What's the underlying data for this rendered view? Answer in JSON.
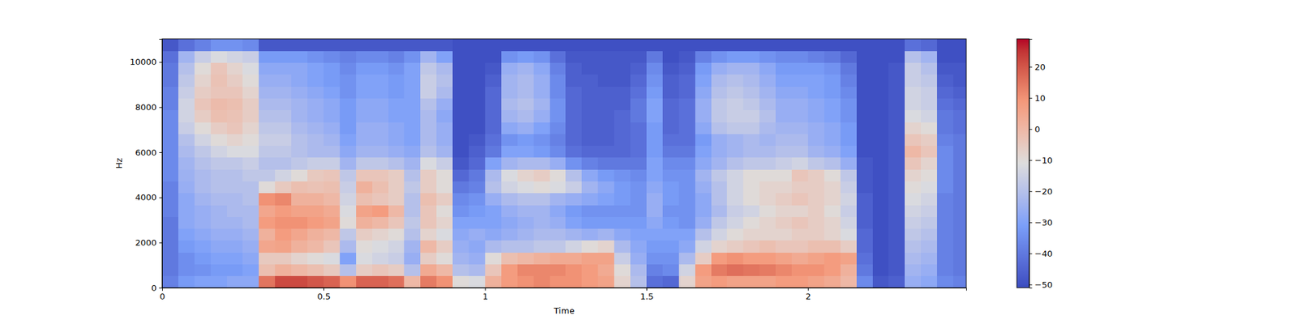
{
  "chart_data": {
    "type": "heatmap",
    "x_label": "Time",
    "y_label": "Hz",
    "xlim": [
      0,
      2.49
    ],
    "ylim": [
      0,
      11025
    ],
    "xticks": [
      0,
      0.5,
      1,
      1.5,
      2
    ],
    "yticks": [
      0,
      2000,
      4000,
      6000,
      8000,
      10000
    ],
    "colorbar_lim": [
      -51,
      29
    ],
    "colorbar_ticks": [
      {
        "value": -50,
        "label": "−50"
      },
      {
        "value": -40,
        "label": "−40"
      },
      {
        "value": -30,
        "label": "−30"
      },
      {
        "value": -20,
        "label": "−20"
      },
      {
        "value": -10,
        "label": "−10"
      },
      0,
      10,
      20
    ],
    "x_edges": [
      0,
      0.05,
      0.1,
      0.15,
      0.2,
      0.25,
      0.3,
      0.35,
      0.4,
      0.45,
      0.5,
      0.55,
      0.6,
      0.65,
      0.7,
      0.75,
      0.8,
      0.85,
      0.9,
      0.95,
      1.0,
      1.05,
      1.1,
      1.15,
      1.2,
      1.25,
      1.3,
      1.35,
      1.4,
      1.45,
      1.5,
      1.55,
      1.6,
      1.65,
      1.7,
      1.75,
      1.8,
      1.85,
      1.9,
      1.95,
      2.0,
      2.05,
      2.1,
      2.15,
      2.2,
      2.25,
      2.3,
      2.35,
      2.4,
      2.45,
      2.49
    ],
    "y_edges": [
      0,
      525,
      1050,
      1575,
      2100,
      2625,
      3150,
      3675,
      4200,
      4725,
      5250,
      5775,
      6300,
      6825,
      7350,
      7875,
      8400,
      8925,
      9450,
      9975,
      10500,
      11025
    ],
    "values": [
      [
        -38,
        -40,
        -40,
        -40,
        -40,
        -40,
        -38,
        -38,
        -38,
        -36,
        -36,
        -36,
        -36,
        -36,
        -36,
        -38,
        -38,
        -40,
        -40,
        -42,
        -48
      ],
      [
        -32,
        -35,
        -35,
        -32,
        -30,
        -28,
        -28,
        -28,
        -26,
        -25,
        -24,
        -22,
        -20,
        -16,
        -14,
        -14,
        -16,
        -18,
        -20,
        -24,
        -42
      ],
      [
        -30,
        -34,
        -32,
        -30,
        -28,
        -26,
        -26,
        -24,
        -22,
        -22,
        -20,
        -18,
        -14,
        -10,
        -6,
        -4,
        -6,
        -8,
        -10,
        -16,
        -38
      ],
      [
        -30,
        -32,
        -30,
        -28,
        -26,
        -24,
        -24,
        -22,
        -20,
        -20,
        -18,
        -14,
        -10,
        -6,
        -2,
        -1,
        -4,
        -3,
        -4,
        -12,
        -34
      ],
      [
        -28,
        -32,
        -30,
        -28,
        -26,
        -24,
        -22,
        -22,
        -20,
        -20,
        -18,
        -12,
        -8,
        -4,
        -3,
        -2,
        -4,
        -6,
        -8,
        -14,
        -34
      ],
      [
        -28,
        -30,
        -28,
        -26,
        -24,
        -22,
        -22,
        -20,
        -20,
        -18,
        -16,
        -12,
        -10,
        -8,
        -6,
        -6,
        -8,
        -10,
        -12,
        -16,
        -36
      ],
      [
        15,
        -2,
        -5,
        5,
        2,
        8,
        5,
        10,
        -10,
        -18,
        -20,
        -18,
        -16,
        -18,
        -20,
        -22,
        -24,
        -26,
        -28,
        -32,
        -48
      ],
      [
        22,
        2,
        -5,
        6,
        8,
        10,
        8,
        12,
        -5,
        -14,
        -20,
        -18,
        -16,
        -18,
        -20,
        -22,
        -24,
        -26,
        -28,
        -32,
        -48
      ],
      [
        22,
        0,
        -8,
        2,
        5,
        10,
        6,
        2,
        -2,
        -10,
        -18,
        -20,
        -20,
        -22,
        -24,
        -24,
        -26,
        -28,
        -28,
        -32,
        -48
      ],
      [
        20,
        -2,
        -10,
        0,
        2,
        8,
        6,
        2,
        -3,
        -5,
        -16,
        -22,
        -22,
        -24,
        -26,
        -26,
        -28,
        -30,
        -30,
        -34,
        -48
      ],
      [
        18,
        -5,
        -12,
        -4,
        0,
        6,
        4,
        0,
        -2,
        -4,
        -16,
        -22,
        -24,
        -26,
        -28,
        -28,
        -30,
        -32,
        -32,
        -36,
        -48
      ],
      [
        10,
        -20,
        -30,
        -22,
        -18,
        -10,
        -12,
        -14,
        -16,
        -18,
        -24,
        -28,
        -30,
        -32,
        -32,
        -32,
        -34,
        -34,
        -36,
        -38,
        -48
      ],
      [
        18,
        -6,
        -12,
        -10,
        -6,
        2,
        6,
        -2,
        2,
        -4,
        -18,
        -24,
        -26,
        -26,
        -28,
        -28,
        -30,
        -30,
        -32,
        -36,
        -48
      ],
      [
        18,
        -4,
        -14,
        -12,
        -8,
        0,
        8,
        -4,
        -2,
        -4,
        -18,
        -24,
        -26,
        -26,
        -28,
        -28,
        -30,
        -30,
        -32,
        -36,
        -48
      ],
      [
        16,
        -6,
        -16,
        -14,
        -10,
        -4,
        0,
        -6,
        -6,
        -6,
        -20,
        -26,
        -28,
        -28,
        -30,
        -30,
        -32,
        -32,
        -34,
        -38,
        -48
      ],
      [
        0,
        -20,
        -26,
        -24,
        -20,
        -18,
        -20,
        -20,
        -18,
        -20,
        -24,
        -28,
        -30,
        -30,
        -30,
        -30,
        -30,
        -30,
        -30,
        -34,
        -48
      ],
      [
        14,
        4,
        -6,
        0,
        -8,
        -4,
        -4,
        -2,
        -6,
        -6,
        -12,
        -20,
        -22,
        -22,
        -22,
        -20,
        -16,
        -16,
        -18,
        -24,
        -48
      ],
      [
        10,
        0,
        -10,
        -6,
        -12,
        -8,
        -10,
        -6,
        -10,
        -10,
        -16,
        -24,
        -26,
        -26,
        -28,
        -26,
        -22,
        -20,
        -22,
        -30,
        -48
      ],
      [
        -10,
        -20,
        -24,
        -26,
        -28,
        -30,
        -34,
        -36,
        -40,
        -44,
        -48,
        -50,
        -50,
        -50,
        -50,
        -50,
        -50,
        -50,
        -50,
        -50,
        -50
      ],
      [
        -12,
        -22,
        -26,
        -28,
        -26,
        -30,
        -32,
        -34,
        -38,
        -40,
        -44,
        -46,
        -48,
        -50,
        -50,
        -50,
        -50,
        -50,
        -50,
        -50,
        -50
      ],
      [
        2,
        -4,
        -10,
        -22,
        -28,
        -30,
        -30,
        -26,
        -20,
        -22,
        -30,
        -40,
        -42,
        -44,
        -44,
        -44,
        -44,
        -46,
        -48,
        -50,
        -50
      ],
      [
        8,
        8,
        -2,
        -20,
        -26,
        -28,
        -26,
        -22,
        -14,
        -12,
        -24,
        -30,
        -34,
        -28,
        -24,
        -22,
        -24,
        -24,
        -26,
        -34,
        -50
      ],
      [
        10,
        12,
        0,
        -20,
        -24,
        -26,
        -24,
        -20,
        -12,
        -8,
        -22,
        -30,
        -32,
        -26,
        -22,
        -20,
        -22,
        -22,
        -24,
        -32,
        -50
      ],
      [
        12,
        12,
        2,
        -18,
        -22,
        -24,
        -24,
        -20,
        -10,
        -6,
        -22,
        -32,
        -34,
        -30,
        -26,
        -24,
        -26,
        -26,
        -28,
        -34,
        -50
      ],
      [
        10,
        12,
        4,
        -18,
        -22,
        -26,
        -28,
        -24,
        -12,
        -10,
        -26,
        -36,
        -38,
        -36,
        -34,
        -34,
        -36,
        -36,
        -38,
        -42,
        -50
      ],
      [
        10,
        10,
        4,
        -14,
        -24,
        -30,
        -32,
        -26,
        -16,
        -20,
        -34,
        -42,
        -44,
        -44,
        -44,
        -44,
        -44,
        -46,
        -46,
        -48,
        -50
      ],
      [
        8,
        8,
        6,
        -10,
        -26,
        -32,
        -34,
        -28,
        -24,
        -28,
        -38,
        -44,
        -46,
        -46,
        -46,
        -46,
        -46,
        -46,
        -48,
        -48,
        -50
      ],
      [
        6,
        4,
        6,
        -8,
        -24,
        -32,
        -34,
        -30,
        -28,
        -32,
        -40,
        -44,
        -46,
        -46,
        -46,
        -46,
        -46,
        -48,
        -48,
        -48,
        -50
      ],
      [
        -8,
        -10,
        -16,
        -22,
        -28,
        -32,
        -34,
        -32,
        -32,
        -34,
        -40,
        -44,
        -44,
        -44,
        -44,
        -46,
        -46,
        -48,
        -48,
        -48,
        -50
      ],
      [
        -20,
        -22,
        -26,
        -28,
        -30,
        -32,
        -34,
        -34,
        -34,
        -36,
        -40,
        -42,
        -42,
        -42,
        -40,
        -40,
        -42,
        -44,
        -46,
        -48,
        -50
      ],
      [
        -42,
        -38,
        -34,
        -32,
        -30,
        -28,
        -26,
        -26,
        -28,
        -30,
        -30,
        -32,
        -32,
        -32,
        -30,
        -30,
        -32,
        -34,
        -36,
        -40,
        -50
      ],
      [
        -44,
        -36,
        -34,
        -32,
        -30,
        -32,
        -34,
        -32,
        -32,
        -34,
        -36,
        -40,
        -42,
        -44,
        -44,
        -44,
        -46,
        -46,
        -48,
        -50,
        -50
      ],
      [
        -8,
        -14,
        -22,
        -28,
        -30,
        -34,
        -34,
        -34,
        -34,
        -34,
        -36,
        -40,
        -42,
        -42,
        -42,
        -42,
        -44,
        -44,
        -46,
        -48,
        -50
      ],
      [
        6,
        8,
        -6,
        -14,
        -20,
        -26,
        -28,
        -28,
        -26,
        -24,
        -28,
        -30,
        -32,
        -28,
        -26,
        -26,
        -28,
        -30,
        -32,
        -38,
        -50
      ],
      [
        8,
        14,
        8,
        -8,
        -14,
        -18,
        -22,
        -20,
        -20,
        -18,
        -24,
        -26,
        -26,
        -20,
        -18,
        -18,
        -20,
        -22,
        -26,
        -34,
        -50
      ],
      [
        6,
        16,
        10,
        -6,
        -10,
        -14,
        -16,
        -14,
        -14,
        -14,
        -20,
        -24,
        -24,
        -18,
        -16,
        -16,
        -18,
        -20,
        -24,
        -32,
        -50
      ],
      [
        6,
        15,
        8,
        -4,
        -8,
        -10,
        -14,
        -10,
        -10,
        -10,
        -18,
        -22,
        -22,
        -18,
        -16,
        -18,
        -20,
        -22,
        -24,
        -32,
        -50
      ],
      [
        6,
        14,
        8,
        -2,
        -8,
        -8,
        -10,
        -8,
        -8,
        -10,
        -18,
        -22,
        -24,
        -22,
        -20,
        -22,
        -24,
        -26,
        -28,
        -34,
        -50
      ],
      [
        8,
        12,
        6,
        -4,
        -8,
        -6,
        -8,
        -6,
        -8,
        -10,
        -16,
        -20,
        -22,
        -24,
        -26,
        -26,
        -28,
        -30,
        -32,
        -36,
        -50
      ],
      [
        8,
        10,
        4,
        -4,
        -6,
        -4,
        -8,
        -4,
        -6,
        -4,
        -14,
        -20,
        -22,
        -24,
        -26,
        -26,
        -28,
        -30,
        -32,
        -36,
        -50
      ],
      [
        6,
        10,
        6,
        -2,
        -6,
        -6,
        -6,
        -6,
        -6,
        -6,
        -18,
        -24,
        -26,
        -26,
        -28,
        -28,
        -30,
        -30,
        -32,
        -38,
        -50
      ],
      [
        4,
        8,
        8,
        -2,
        -8,
        -8,
        -10,
        -8,
        -8,
        -10,
        -20,
        -26,
        -28,
        -28,
        -30,
        -30,
        -32,
        -32,
        -34,
        -40,
        -50
      ],
      [
        0,
        2,
        6,
        -6,
        -12,
        -14,
        -16,
        -14,
        -16,
        -18,
        -26,
        -30,
        -32,
        -32,
        -34,
        -34,
        -36,
        -38,
        -40,
        -44,
        -50
      ],
      [
        -36,
        -40,
        -42,
        -44,
        -44,
        -46,
        -46,
        -46,
        -48,
        -48,
        -48,
        -50,
        -50,
        -50,
        -50,
        -50,
        -50,
        -50,
        -50,
        -50,
        -50
      ],
      [
        -48,
        -50,
        -50,
        -50,
        -50,
        -50,
        -50,
        -50,
        -50,
        -50,
        -50,
        -50,
        -50,
        -50,
        -50,
        -50,
        -50,
        -50,
        -50,
        -50,
        -50
      ],
      [
        -46,
        -48,
        -48,
        -48,
        -48,
        -48,
        -48,
        -48,
        -48,
        -48,
        -48,
        -48,
        -48,
        -48,
        -48,
        -48,
        -48,
        -48,
        -48,
        -50,
        -50
      ],
      [
        -26,
        -24,
        -22,
        -20,
        -18,
        -16,
        -14,
        -12,
        -10,
        -8,
        -4,
        0,
        -4,
        -8,
        -12,
        -14,
        -14,
        -16,
        -16,
        -20,
        -42
      ],
      [
        -28,
        -26,
        -24,
        -22,
        -20,
        -18,
        -16,
        -14,
        -12,
        -10,
        -8,
        -4,
        -6,
        -10,
        -14,
        -16,
        -16,
        -18,
        -20,
        -24,
        -44
      ],
      [
        -36,
        -38,
        -38,
        -38,
        -38,
        -38,
        -38,
        -38,
        -36,
        -36,
        -36,
        -36,
        -38,
        -40,
        -40,
        -42,
        -44,
        -46,
        -48,
        -50,
        -50
      ],
      [
        -38,
        -40,
        -40,
        -40,
        -40,
        -40,
        -40,
        -40,
        -40,
        -40,
        -40,
        -40,
        -40,
        -42,
        -42,
        -44,
        -46,
        -48,
        -48,
        -50,
        -50
      ]
    ]
  }
}
